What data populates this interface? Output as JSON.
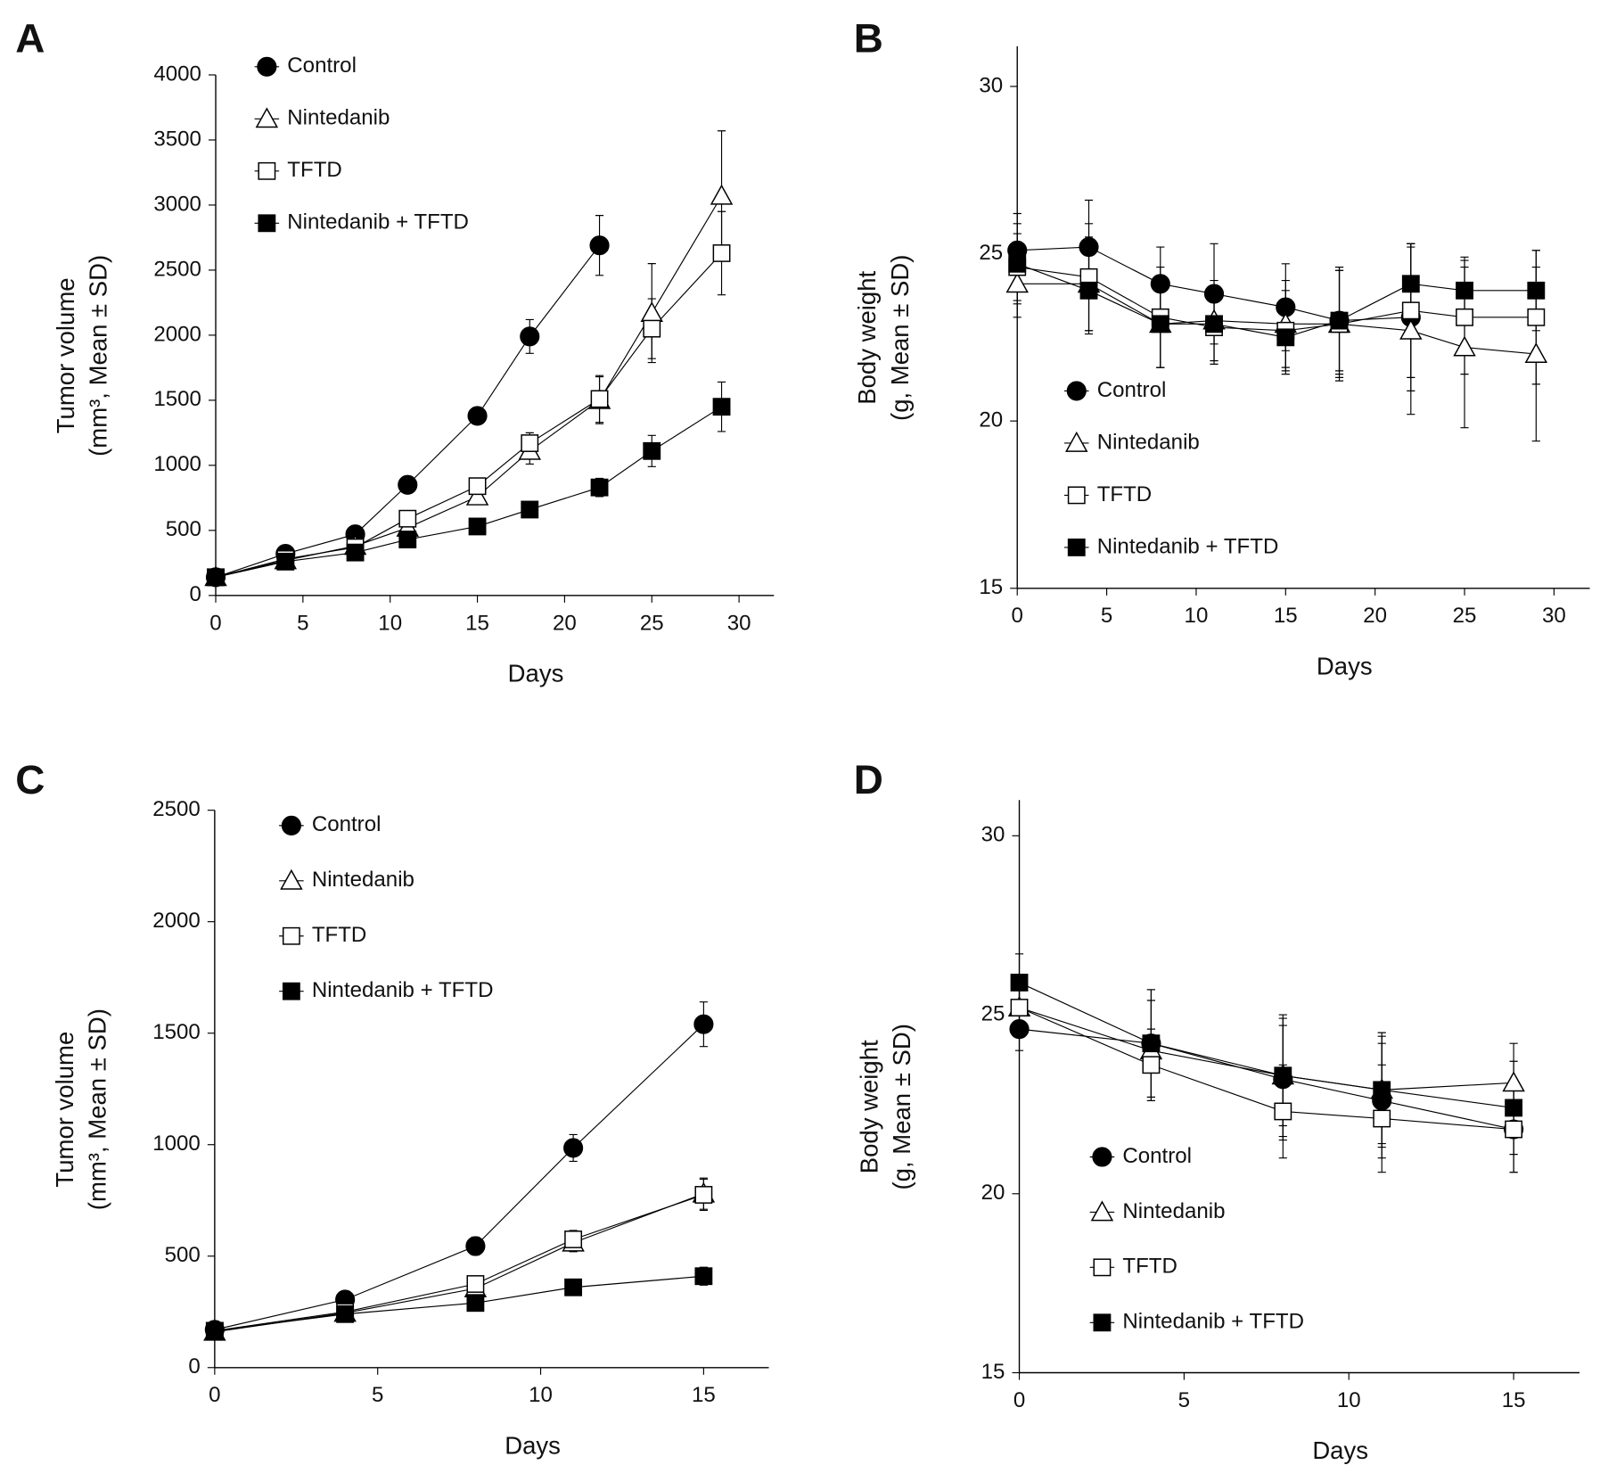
{
  "chart_data": [
    {
      "type": "line",
      "panel": "A",
      "xlabel": "Days",
      "ylabel": [
        "Tumor volume",
        "(mm³, Mean ± SD)"
      ],
      "x": [
        0,
        4,
        8,
        11,
        15,
        18,
        22,
        25,
        29
      ],
      "xlim": [
        0,
        32
      ],
      "xticks": [
        0,
        5,
        10,
        15,
        20,
        25,
        30
      ],
      "ylim": [
        0,
        4000
      ],
      "yticks": [
        0,
        500,
        1000,
        1500,
        2000,
        2500,
        3000,
        3500,
        4000
      ],
      "legend": "upper left",
      "series": [
        {
          "name": "Control",
          "marker": "circle",
          "color": "#000000",
          "fill": "#000000",
          "values": [
            140,
            320,
            470,
            850,
            1380,
            1990,
            2690,
            null,
            null
          ],
          "errors": [
            30,
            30,
            40,
            40,
            40,
            130,
            230,
            null,
            null
          ]
        },
        {
          "name": "Nintedanib",
          "marker": "triangle",
          "color": "#000000",
          "fill": "#ffffff",
          "values": [
            140,
            270,
            380,
            520,
            760,
            1110,
            1500,
            2170,
            3070
          ],
          "errors": [
            20,
            30,
            30,
            40,
            50,
            100,
            180,
            380,
            500
          ]
        },
        {
          "name": "TFTD",
          "marker": "square",
          "color": "#000000",
          "fill": "#ffffff",
          "values": [
            140,
            280,
            370,
            590,
            840,
            1170,
            1510,
            2050,
            2630
          ],
          "errors": [
            20,
            30,
            30,
            40,
            50,
            80,
            180,
            230,
            320
          ]
        },
        {
          "name": "Nintedanib + TFTD",
          "marker": "square",
          "color": "#000000",
          "fill": "#000000",
          "values": [
            140,
            260,
            330,
            430,
            530,
            660,
            830,
            1110,
            1450
          ],
          "errors": [
            20,
            20,
            30,
            30,
            30,
            40,
            70,
            120,
            190
          ]
        }
      ]
    },
    {
      "type": "line",
      "panel": "B",
      "xlabel": "Days",
      "ylabel": [
        "Body weight",
        "(g, Mean ± SD)"
      ],
      "x": [
        0,
        4,
        8,
        11,
        15,
        18,
        22,
        25,
        29
      ],
      "xlim": [
        0,
        32
      ],
      "xticks": [
        0,
        5,
        10,
        15,
        20,
        25,
        30
      ],
      "ylim": [
        15,
        31.2
      ],
      "yticks": [
        15,
        20,
        25,
        30
      ],
      "legend": "lower left",
      "series": [
        {
          "name": "Control",
          "marker": "circle",
          "color": "#000000",
          "fill": "#000000",
          "values": [
            25.1,
            25.2,
            24.1,
            23.8,
            23.4,
            23.0,
            23.1,
            null,
            null
          ],
          "errors": [
            1.1,
            1.4,
            1.1,
            1.5,
            1.3,
            1.6,
            2.2,
            null,
            null
          ]
        },
        {
          "name": "Nintedanib",
          "marker": "triangle",
          "color": "#000000",
          "fill": "#ffffff",
          "values": [
            24.1,
            24.1,
            22.9,
            23.0,
            22.9,
            22.9,
            22.7,
            22.2,
            22.0
          ],
          "errors": [
            1.0,
            1.4,
            1.3,
            1.2,
            1.3,
            1.7,
            2.5,
            2.4,
            2.6
          ]
        },
        {
          "name": "TFTD",
          "marker": "square",
          "color": "#000000",
          "fill": "#ffffff",
          "values": [
            24.6,
            24.3,
            23.1,
            22.8,
            22.7,
            22.9,
            23.3,
            23.1,
            23.1
          ],
          "errors": [
            1.0,
            1.6,
            1.5,
            1.1,
            1.2,
            1.6,
            2.0,
            1.7,
            2.0
          ]
        },
        {
          "name": "Nintedanib + TFTD",
          "marker": "square",
          "color": "#000000",
          "fill": "#000000",
          "values": [
            24.7,
            23.9,
            22.9,
            22.9,
            22.5,
            23.0,
            24.1,
            23.9,
            23.9
          ],
          "errors": [
            1.2,
            1.3,
            1.3,
            1.1,
            1.1,
            1.5,
            1.2,
            1.0,
            1.2
          ]
        }
      ]
    },
    {
      "type": "line",
      "panel": "C",
      "xlabel": "Days",
      "ylabel": [
        "Tumor volume",
        "(mm³, Mean ± SD)"
      ],
      "x": [
        0,
        4,
        8,
        11,
        15
      ],
      "xlim": [
        0,
        17
      ],
      "xticks": [
        0,
        5,
        10,
        15
      ],
      "ylim": [
        0,
        2500
      ],
      "yticks": [
        0,
        500,
        1000,
        1500,
        2000,
        2500
      ],
      "legend": "upper left",
      "series": [
        {
          "name": "Control",
          "marker": "circle",
          "color": "#000000",
          "fill": "#000000",
          "values": [
            170,
            305,
            545,
            985,
            1540
          ],
          "errors": [
            20,
            20,
            40,
            60,
            100
          ]
        },
        {
          "name": "Nintedanib",
          "marker": "triangle",
          "color": "#000000",
          "fill": "#ffffff",
          "values": [
            160,
            245,
            355,
            560,
            780
          ],
          "errors": [
            15,
            20,
            30,
            40,
            70
          ]
        },
        {
          "name": "TFTD",
          "marker": "square",
          "color": "#000000",
          "fill": "#ffffff",
          "values": [
            165,
            250,
            375,
            575,
            775
          ],
          "errors": [
            15,
            20,
            30,
            40,
            70
          ]
        },
        {
          "name": "Nintedanib + TFTD",
          "marker": "square",
          "color": "#000000",
          "fill": "#000000",
          "values": [
            165,
            240,
            290,
            360,
            410
          ],
          "errors": [
            15,
            20,
            20,
            25,
            40
          ]
        }
      ]
    },
    {
      "type": "line",
      "panel": "D",
      "xlabel": "Days",
      "ylabel": [
        "Body weight",
        "(g, Mean ± SD)"
      ],
      "x": [
        0,
        4,
        8,
        11,
        15
      ],
      "xlim": [
        0,
        17
      ],
      "xticks": [
        0,
        5,
        10,
        15
      ],
      "ylim": [
        15,
        31
      ],
      "yticks": [
        15,
        20,
        25,
        30
      ],
      "legend": "lower left",
      "series": [
        {
          "name": "Control",
          "marker": "circle",
          "color": "#000000",
          "fill": "#000000",
          "values": [
            24.6,
            24.2,
            23.2,
            22.6,
            21.8
          ],
          "errors": [
            0.6,
            1.5,
            1.7,
            1.6,
            1.2
          ]
        },
        {
          "name": "Nintedanib",
          "marker": "triangle",
          "color": "#000000",
          "fill": "#ffffff",
          "values": [
            25.2,
            24.0,
            23.3,
            22.9,
            23.1
          ],
          "errors": [
            0.6,
            1.4,
            1.4,
            1.5,
            1.1
          ]
        },
        {
          "name": "TFTD",
          "marker": "square",
          "color": "#000000",
          "fill": "#ffffff",
          "values": [
            25.2,
            23.6,
            22.3,
            22.1,
            21.8
          ],
          "errors": [
            0.8,
            1.0,
            1.3,
            1.5,
            1.2
          ]
        },
        {
          "name": "Nintedanib + TFTD",
          "marker": "square",
          "color": "#000000",
          "fill": "#000000",
          "values": [
            25.9,
            24.2,
            23.3,
            22.9,
            22.4
          ],
          "errors": [
            0.8,
            1.5,
            1.7,
            1.6,
            1.3
          ]
        }
      ]
    }
  ]
}
